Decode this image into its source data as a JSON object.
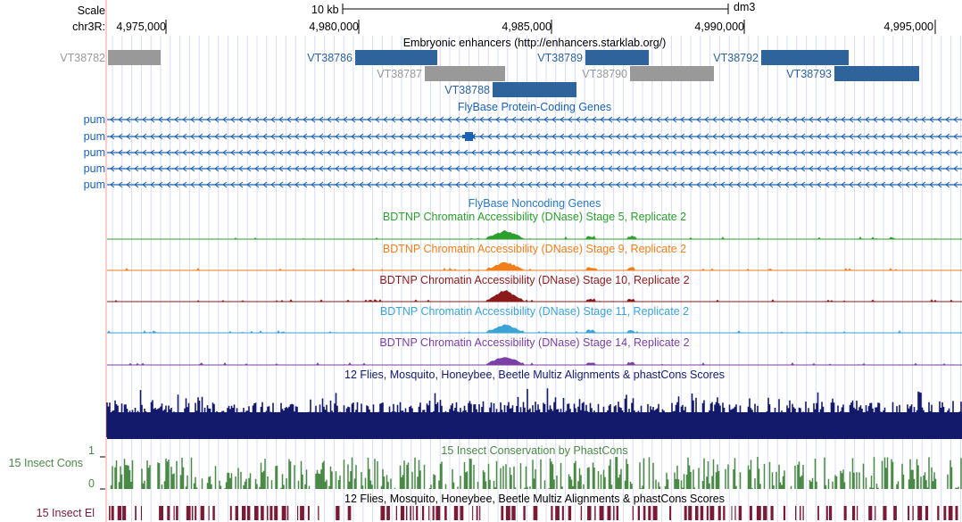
{
  "ruler": {
    "scale_label": "Scale",
    "chrom_label": "chr3R:",
    "scale_bar_label": "10 kb",
    "assembly": "dm3",
    "ticks": [
      "4,975,000",
      "4,980,000",
      "4,985,000",
      "4,990,000",
      "4,995,000"
    ]
  },
  "tracks": {
    "enhancers": {
      "title": "Embryonic enhancers (http://enhancers.starklab.org/)",
      "features": [
        {
          "name": "VT38782",
          "color": "#999999"
        },
        {
          "name": "VT38786",
          "color": "#2e639b"
        },
        {
          "name": "VT38787",
          "color": "#999999"
        },
        {
          "name": "VT38788",
          "color": "#2e639b"
        },
        {
          "name": "VT38789",
          "color": "#2e639b"
        },
        {
          "name": "VT38790",
          "color": "#999999"
        },
        {
          "name": "VT38792",
          "color": "#2e639b"
        },
        {
          "name": "VT38793",
          "color": "#2e639b"
        }
      ]
    },
    "flybase_coding": {
      "title": "FlyBase Protein-Coding Genes",
      "color": "#1a62b5",
      "genes": [
        "pum",
        "pum",
        "pum",
        "pum",
        "pum"
      ]
    },
    "flybase_noncoding": {
      "title": "FlyBase Noncoding Genes",
      "color": "#2a78c4"
    },
    "dnase": [
      {
        "title": "BDTNP Chromatin Accessibility (DNase) Stage 5, Replicate 2",
        "color": "#2ca02c"
      },
      {
        "title": "BDTNP Chromatin Accessibility (DNase) Stage 9, Replicate 2",
        "color": "#f07f1a"
      },
      {
        "title": "BDTNP Chromatin Accessibility (DNase) Stage 10, Replicate 2",
        "color": "#8c1a1a"
      },
      {
        "title": "BDTNP Chromatin Accessibility (DNase) Stage 11, Replicate 2",
        "color": "#3ba3d6"
      },
      {
        "title": "BDTNP Chromatin Accessibility (DNase) Stage 14, Replicate 2",
        "color": "#7b3fa6"
      }
    ],
    "multiz": {
      "title": "12 Flies, Mosquito, Honeybee, Beetle Multiz Alignments & phastCons Scores",
      "color": "#141a6b"
    },
    "phastcons": {
      "title": "15 Insect Conservation by PhastCons",
      "side_label": "15 Insect Cons",
      "ymax": "1",
      "ymin": "0",
      "color": "#4a8a46"
    },
    "elements": {
      "title": "12 Flies, Mosquito, Honeybee, Beetle Multiz Alignments & phastCons Scores",
      "side_label": "15 Insect El",
      "color": "#7a1a35"
    }
  }
}
